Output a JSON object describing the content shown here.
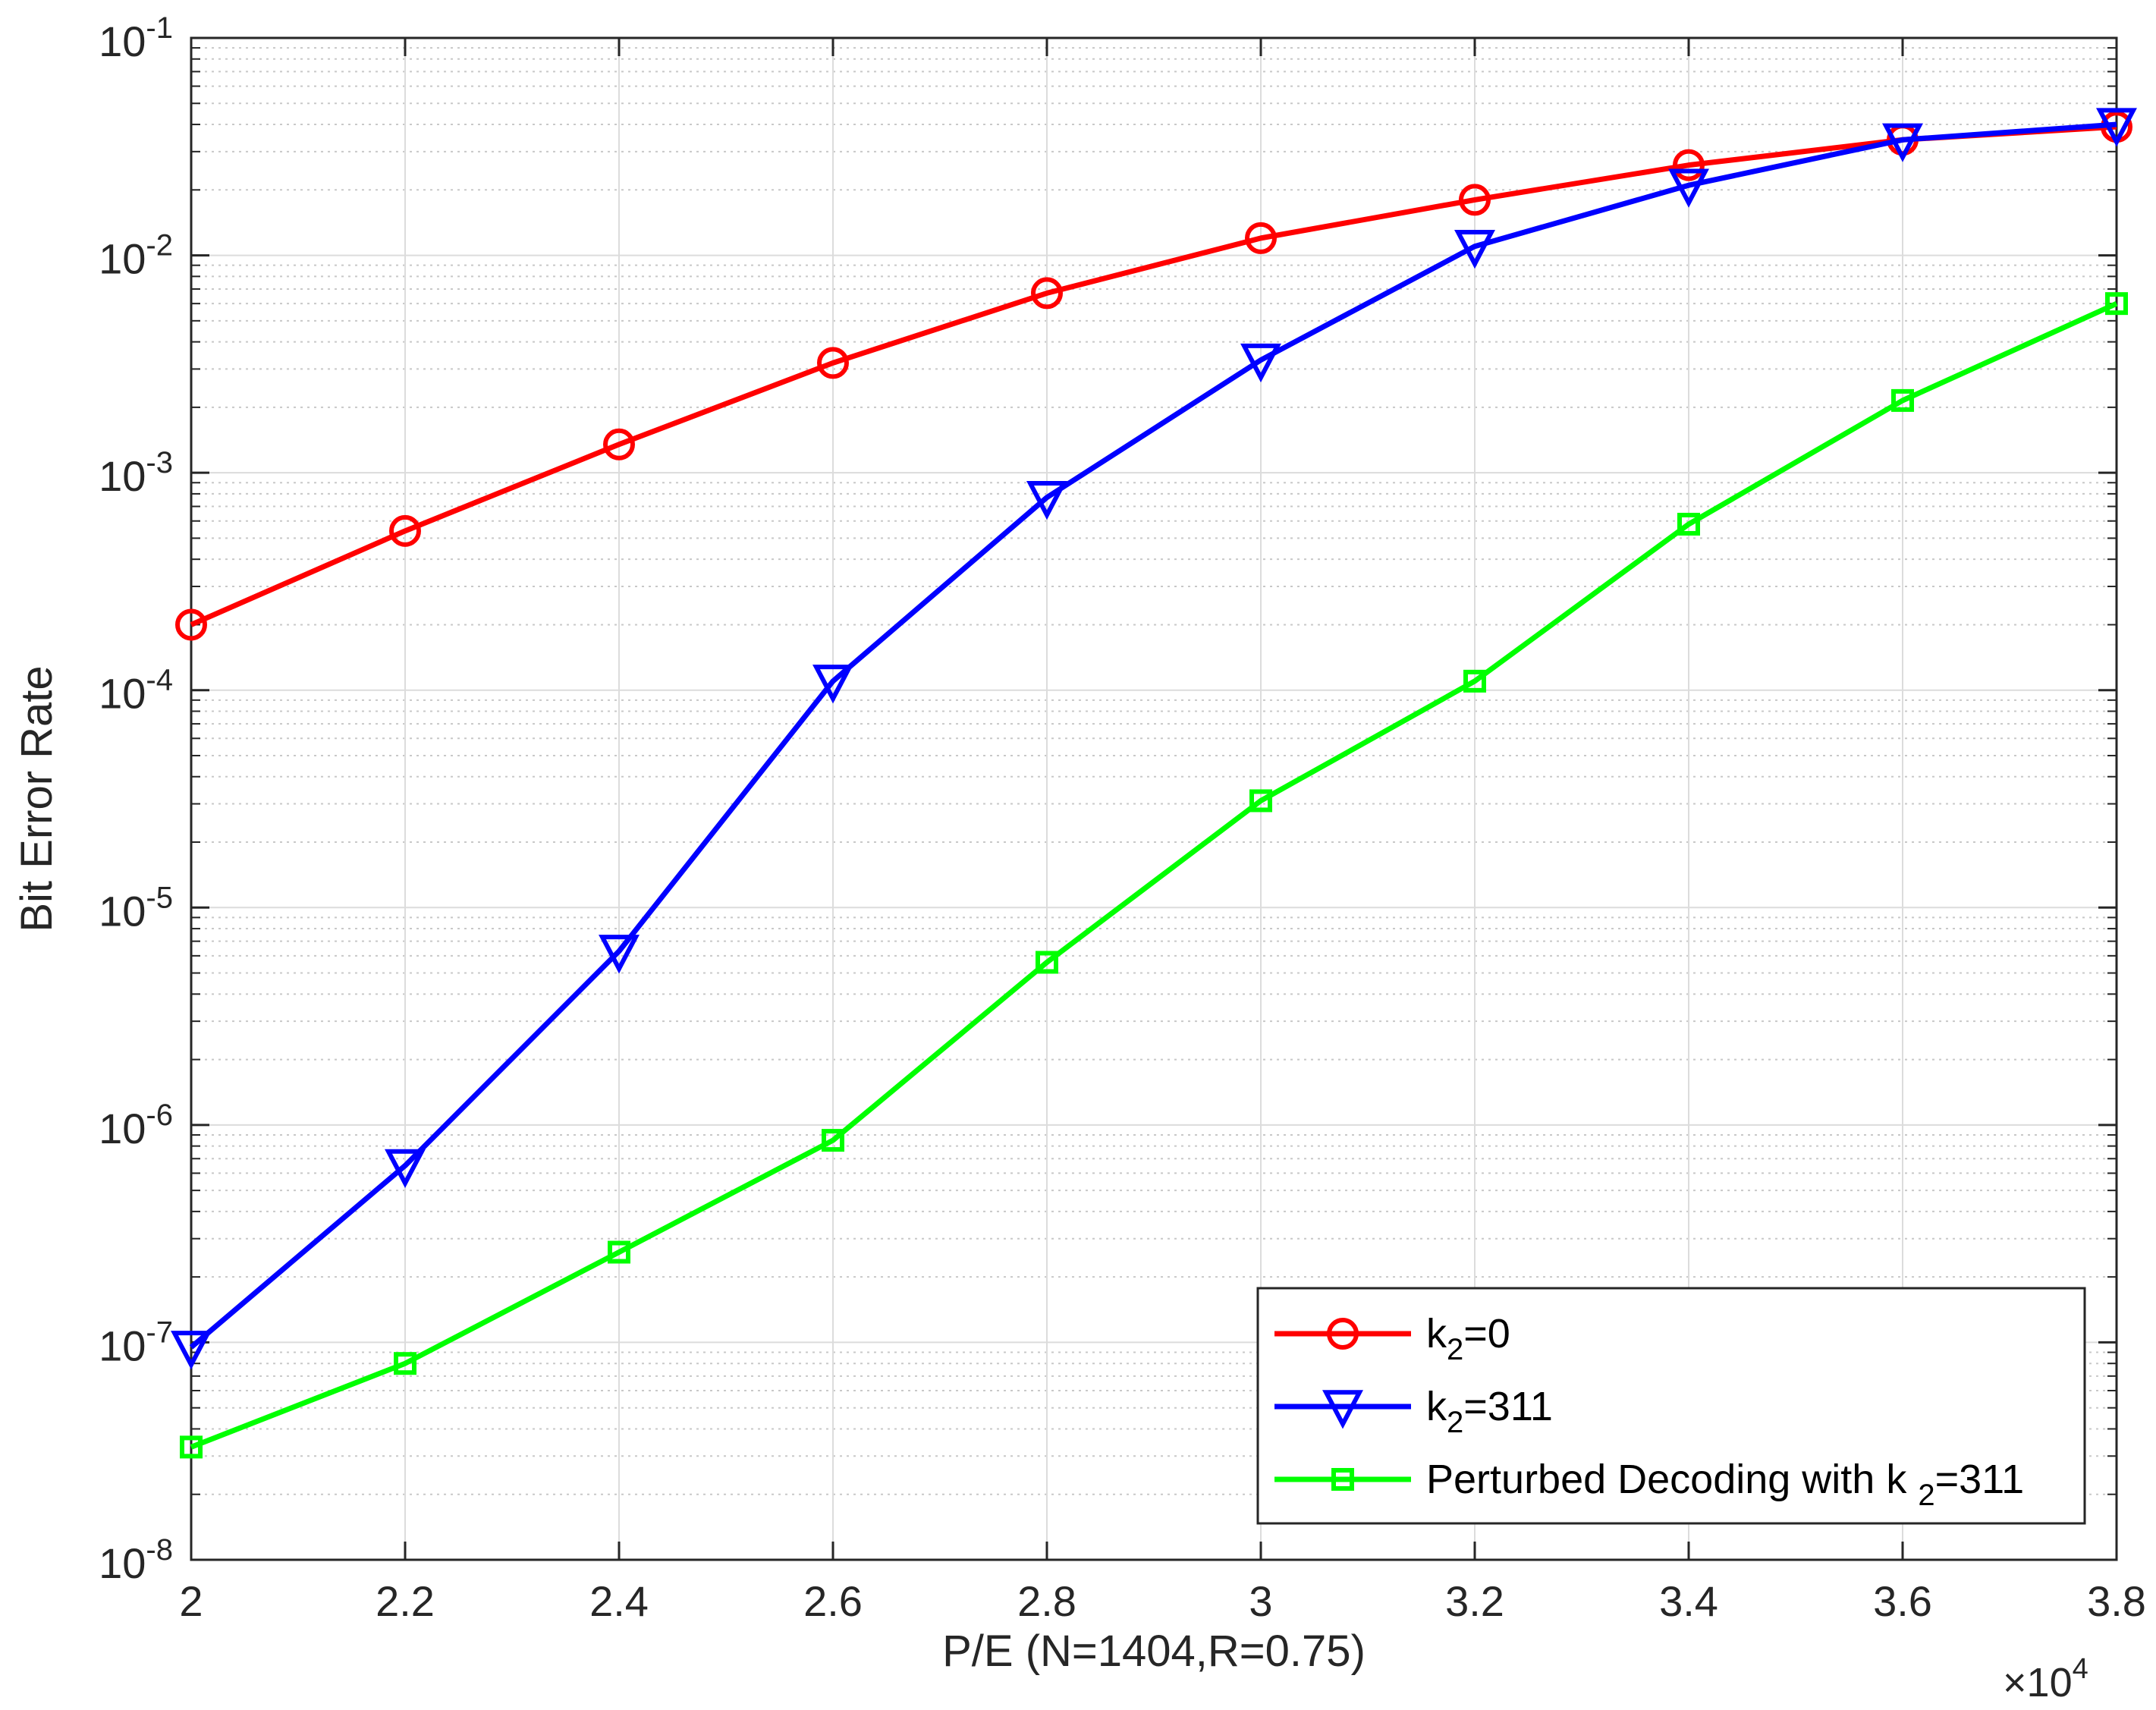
{
  "chart_data": {
    "type": "line",
    "title": "",
    "xlabel": "P/E (N=1404,R=0.75)",
    "ylabel": "Bit Error Rate",
    "x_multiplier": "×10",
    "x_multiplier_exp": "4",
    "xlim": [
      2,
      3.8
    ],
    "ylim": [
      1e-08,
      0.1
    ],
    "yscale": "log",
    "grid": true,
    "minor_grid": true,
    "legend_position": "bottom-right",
    "x_ticks": [
      "2",
      "2.2",
      "2.4",
      "2.6",
      "2.8",
      "3",
      "3.2",
      "3.4",
      "3.6",
      "3.8"
    ],
    "y_ticks": [
      {
        "base": "10",
        "exp": "-8"
      },
      {
        "base": "10",
        "exp": "-7"
      },
      {
        "base": "10",
        "exp": "-6"
      },
      {
        "base": "10",
        "exp": "-5"
      },
      {
        "base": "10",
        "exp": "-4"
      },
      {
        "base": "10",
        "exp": "-3"
      },
      {
        "base": "10",
        "exp": "-2"
      },
      {
        "base": "10",
        "exp": "-1"
      }
    ],
    "x": [
      2,
      2.2,
      2.4,
      2.6,
      2.8,
      3,
      3.2,
      3.4,
      3.6,
      3.8
    ],
    "series": [
      {
        "name": "k2=0",
        "legend_main": "k",
        "legend_sub": "2",
        "legend_rest": "=0",
        "color": "#ff0000",
        "marker": "circle",
        "values": [
          0.0002,
          0.00054,
          0.00135,
          0.0032,
          0.0067,
          0.012,
          0.018,
          0.026,
          0.034,
          0.039
        ]
      },
      {
        "name": "k2=311",
        "legend_main": "k",
        "legend_sub": "2",
        "legend_rest": "=311",
        "color": "#0000ff",
        "marker": "triangle-down",
        "values": [
          9.5e-08,
          6.5e-07,
          6.3e-06,
          0.00011,
          0.00077,
          0.0033,
          0.011,
          0.021,
          0.034,
          0.04
        ]
      },
      {
        "name": "Perturbed Decoding with k2=311",
        "legend_main": "Perturbed Decoding with k ",
        "legend_sub": "2",
        "legend_rest": "=311",
        "color": "#00ff00",
        "marker": "square",
        "values": [
          3.3e-08,
          8e-08,
          2.6e-07,
          8.5e-07,
          5.6e-06,
          3.1e-05,
          0.00011,
          0.00058,
          0.00215,
          0.006
        ]
      }
    ]
  }
}
